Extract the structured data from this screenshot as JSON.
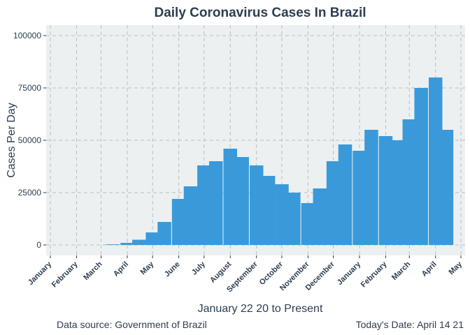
{
  "chart_data": {
    "type": "bar",
    "title": "Daily Coronavirus Cases In Brazil",
    "xlabel": "January 22 20 to Present",
    "ylabel": "Cases Per Day",
    "caption_left": "Data source: Government of Brazil",
    "caption_right": "Today's Date: April 14 21",
    "ylim": [
      -5000,
      105000
    ],
    "yticks": [
      0,
      25000,
      50000,
      75000,
      100000
    ],
    "ytick_labels": [
      "0",
      "25000",
      "50000",
      "75000",
      "100000"
    ],
    "xlim": [
      "2019-12-27",
      "2021-05-06"
    ],
    "xticks": [
      "2020-01-01",
      "2020-02-01",
      "2020-03-01",
      "2020-04-01",
      "2020-05-01",
      "2020-06-01",
      "2020-07-01",
      "2020-08-01",
      "2020-09-01",
      "2020-10-01",
      "2020-11-01",
      "2020-12-01",
      "2021-01-01",
      "2021-02-01",
      "2021-03-01",
      "2021-04-01",
      "2021-05-01"
    ],
    "xtick_labels": [
      "January",
      "February",
      "March",
      "April",
      "May",
      "June",
      "July",
      "August",
      "September",
      "October",
      "November",
      "December",
      "January",
      "February",
      "March",
      "April",
      "May"
    ],
    "grid": true,
    "bar_color": "#3a9ad9",
    "background_color": "#ecf0f1",
    "series": [
      {
        "x": [
          "2020-03-15",
          "2020-04-01",
          "2020-04-15",
          "2020-05-01",
          "2020-05-15",
          "2020-06-01",
          "2020-06-15",
          "2020-07-01",
          "2020-07-15",
          "2020-08-01",
          "2020-08-15",
          "2020-09-01",
          "2020-09-15",
          "2020-10-01",
          "2020-10-15",
          "2020-11-01",
          "2020-11-15",
          "2020-12-01",
          "2020-12-15",
          "2021-01-01",
          "2021-01-15",
          "2021-02-01",
          "2021-02-15",
          "2021-03-01",
          "2021-03-15",
          "2021-04-01",
          "2021-04-14"
        ],
        "values": [
          300,
          1000,
          2500,
          6000,
          11000,
          22000,
          28000,
          38000,
          40000,
          46000,
          42000,
          38000,
          33000,
          29000,
          25000,
          20000,
          27000,
          40000,
          48000,
          45000,
          55000,
          52000,
          50000,
          60000,
          75000,
          80000,
          55000
        ]
      }
    ]
  }
}
